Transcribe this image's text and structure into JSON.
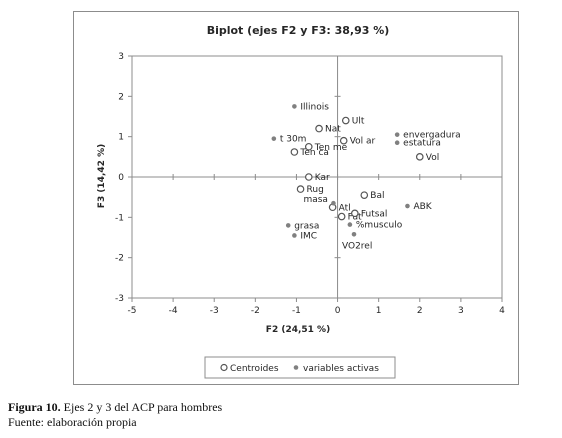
{
  "caption": {
    "figure_label": "Figura 10.",
    "figure_text": " Ejes 2 y 3 del ACP para hombres",
    "source": "Fuente: elaboración propia"
  },
  "chart_data": {
    "type": "scatter",
    "title": "Biplot (ejes F2 y F3: 38,93 %)",
    "xlabel": "F2 (24,51 %)",
    "ylabel": "F3 (14,42 %)",
    "xlim": [
      -5,
      4
    ],
    "ylim": [
      -3,
      3
    ],
    "x_ticks": [
      "-5",
      "-4",
      "-3",
      "-2",
      "-1",
      "0",
      "1",
      "2",
      "3",
      "4"
    ],
    "y_ticks": [
      "-3",
      "-2",
      "-1",
      "0",
      "1",
      "2",
      "3"
    ],
    "grid": false,
    "legend_position": "bottom",
    "colors": {
      "centroid": "#555555",
      "variable": "#808080",
      "axis": "#8c8c8c",
      "text": "#262626"
    },
    "series": [
      {
        "name": "Centroides",
        "marker": "open-circle",
        "points": [
          {
            "label": "Ult",
            "x": 0.2,
            "y": 1.4
          },
          {
            "label": "Nat",
            "x": -0.45,
            "y": 1.2
          },
          {
            "label": "Vol ar",
            "x": 0.15,
            "y": 0.9
          },
          {
            "label": "Ten me",
            "x": -0.7,
            "y": 0.75
          },
          {
            "label": "Ten ca",
            "x": -1.05,
            "y": 0.62
          },
          {
            "label": "Vol",
            "x": 2.0,
            "y": 0.5
          },
          {
            "label": "Kar",
            "x": -0.7,
            "y": 0.0
          },
          {
            "label": "Rug",
            "x": -0.9,
            "y": -0.3
          },
          {
            "label": "Bal",
            "x": 0.65,
            "y": -0.45
          },
          {
            "label": "Atl",
            "x": -0.12,
            "y": -0.75
          },
          {
            "label": "Fut",
            "x": 0.1,
            "y": -0.98
          },
          {
            "label": "Futsal",
            "x": 0.42,
            "y": -0.9
          }
        ]
      },
      {
        "name": "variables activas",
        "marker": "filled-dot",
        "points": [
          {
            "label": "Illinois",
            "x": -1.05,
            "y": 1.75
          },
          {
            "label": "t 30m",
            "x": -1.55,
            "y": 0.95
          },
          {
            "label": "envergadura",
            "x": 1.45,
            "y": 1.05
          },
          {
            "label": "estatura",
            "x": 1.45,
            "y": 0.85
          },
          {
            "label": "masa",
            "x": -0.1,
            "y": -0.65
          },
          {
            "label": "ABK",
            "x": 1.7,
            "y": -0.72
          },
          {
            "label": "grasa",
            "x": -1.2,
            "y": -1.2
          },
          {
            "label": "IMC",
            "x": -1.05,
            "y": -1.45
          },
          {
            "label": "%musculo",
            "x": 0.3,
            "y": -1.18
          },
          {
            "label": "VO2rel",
            "x": 0.4,
            "y": -1.42
          }
        ]
      }
    ]
  }
}
